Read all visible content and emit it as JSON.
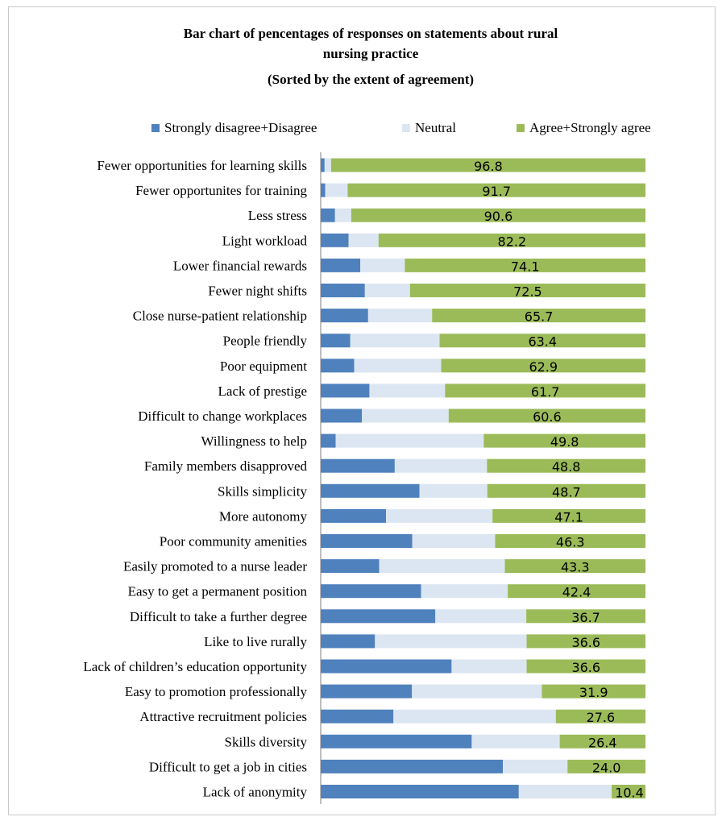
{
  "chart_data": {
    "type": "bar",
    "orientation": "horizontal",
    "stacked": true,
    "title_lines": [
      "Bar chart of pencentages of responses on statements about rural",
      "nursing practice",
      "(Sorted by the extent of agreement)"
    ],
    "legend_position": "top",
    "xlim": [
      0,
      100
    ],
    "grid": false,
    "categories": [
      "Fewer opportunities for learning skills",
      "Fewer opportunites for training",
      "Less stress",
      "Light workload",
      "Lower financial rewards",
      "Fewer night shifts",
      "Close nurse-patient relationship",
      "People friendly",
      "Poor equipment",
      "Lack of prestige",
      "Difficult to change workplaces",
      "Willingness to help",
      "Family members disapproved",
      "Skills simplicity",
      "More autonomy",
      "Poor community amenities",
      "Easily promoted to a nurse leader",
      "Easy to get a permanent position",
      "Difficult to take a further degree",
      "Like to live rurally",
      "Lack of children’s education opportunity",
      "Easy to promotion professionally",
      "Attractive recruitment policies",
      "Skills diversity",
      "Difficult to get a job in cities",
      "Lack of anonymity"
    ],
    "series": [
      {
        "name": "Strongly disagree+Disagree",
        "color": "#4f81bd",
        "values": [
          1.2,
          1.4,
          4.4,
          8.6,
          12.2,
          13.6,
          14.6,
          9.1,
          10.3,
          15.0,
          12.7,
          4.6,
          22.8,
          30.4,
          20.1,
          28.2,
          18.0,
          30.9,
          35.3,
          16.7,
          40.3,
          28.1,
          22.4,
          46.5,
          56.1,
          61.0
        ]
      },
      {
        "name": "Neutral",
        "color": "#dce6f2",
        "values": [
          2.0,
          6.9,
          5.0,
          9.2,
          13.7,
          13.9,
          19.7,
          27.5,
          26.8,
          23.3,
          26.7,
          45.6,
          28.4,
          20.9,
          32.8,
          25.5,
          38.7,
          26.7,
          28.0,
          46.7,
          23.1,
          40.0,
          50.0,
          27.1,
          19.9,
          28.6
        ]
      },
      {
        "name": "Agree+Strongly agree",
        "color": "#9bbb59",
        "values": [
          96.8,
          91.7,
          90.6,
          82.2,
          74.1,
          72.5,
          65.7,
          63.4,
          62.9,
          61.7,
          60.6,
          49.8,
          48.8,
          48.7,
          47.1,
          46.3,
          43.3,
          42.4,
          36.7,
          36.6,
          36.6,
          31.9,
          27.6,
          26.4,
          24.0,
          10.4
        ]
      }
    ],
    "data_labels": [
      "96.8",
      "91.7",
      "90.6",
      "82.2",
      "74.1",
      "72.5",
      "65.7",
      "63.4",
      "62.9",
      "61.7",
      "60.6",
      "49.8",
      "48.8",
      "48.7",
      "47.1",
      "46.3",
      "43.3",
      "42.4",
      "36.7",
      "36.6",
      "36.6",
      "31.9",
      "27.6",
      "26.4",
      "24.0",
      "10.4"
    ]
  }
}
